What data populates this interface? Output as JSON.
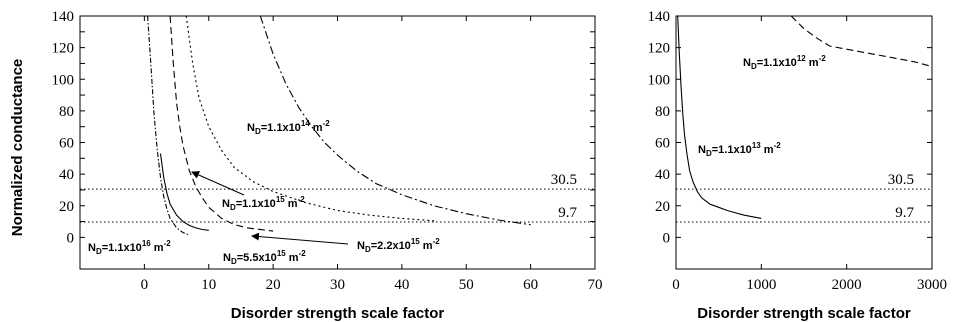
{
  "chart_data": [
    {
      "type": "line",
      "title": "",
      "xlabel": "Disorder strength scale factor",
      "ylabel": "Normalized conductance",
      "xlim": [
        -10,
        70
      ],
      "ylim": [
        -20,
        140
      ],
      "xticks": [
        "0",
        "10",
        "20",
        "30",
        "40",
        "50",
        "60",
        "70"
      ],
      "yticks": [
        "0",
        "10",
        "20",
        "30",
        "40",
        "50",
        "60",
        "70",
        "80",
        "90",
        "100",
        "110",
        "120",
        "130",
        "140"
      ],
      "ytick_labels": {
        "0": "0",
        "20": "20",
        "40": "40",
        "60": "60",
        "80": "80",
        "100": "100",
        "120": "120",
        "140": "140"
      },
      "grid": false,
      "reference_lines": [
        {
          "label": "30.5",
          "y": 30.5
        },
        {
          "label": "9.7",
          "y": 9.7
        }
      ],
      "series": [
        {
          "label_parts": {
            "pre": "N",
            "sub": "D",
            "mid": "=1.1x10",
            "sup": "16",
            "post": " m",
            "sup2": "-2"
          },
          "style": "solid",
          "points": [
            [
              2.5,
              53
            ],
            [
              3,
              38
            ],
            [
              3.5,
              28
            ],
            [
              4,
              21
            ],
            [
              5,
              14
            ],
            [
              6,
              10
            ],
            [
              7,
              7.5
            ],
            [
              8,
              6
            ],
            [
              9,
              5
            ],
            [
              10,
              4.5
            ]
          ]
        },
        {
          "label_parts": {
            "pre": "N",
            "sub": "D",
            "mid": "=5.5x10",
            "sup": "15",
            "post": " m",
            "sup2": "-2"
          },
          "style": "dashed",
          "points": [
            [
              4,
              140
            ],
            [
              4.5,
              110
            ],
            [
              5,
              85
            ],
            [
              5.5,
              70
            ],
            [
              6,
              58
            ],
            [
              7,
              42
            ],
            [
              8,
              32
            ],
            [
              9,
              25
            ],
            [
              10,
              19
            ],
            [
              12,
              12
            ],
            [
              14,
              8
            ],
            [
              16,
              6
            ],
            [
              20,
              4
            ]
          ]
        },
        {
          "label_parts": {
            "pre": "N",
            "sub": "D",
            "mid": "=2.2x10",
            "sup": "15",
            "post": " m",
            "sup2": "-2"
          },
          "style": "dash-dot-fine",
          "points": [
            [
              0.5,
              140
            ],
            [
              1,
              110
            ],
            [
              1.5,
              78
            ],
            [
              2,
              55
            ],
            [
              2.5,
              38
            ],
            [
              3,
              26
            ],
            [
              3.5,
              18
            ],
            [
              4,
              12
            ],
            [
              5,
              6
            ],
            [
              6,
              3
            ],
            [
              7,
              1.5
            ]
          ]
        },
        {
          "label_parts": {
            "pre": "N",
            "sub": "D",
            "mid": "=1.1x10",
            "sup": "15",
            "post": " m",
            "sup2": "-2"
          },
          "style": "dotted",
          "points": [
            [
              6.5,
              140
            ],
            [
              7.5,
              110
            ],
            [
              8.5,
              88
            ],
            [
              10,
              70
            ],
            [
              12,
              55
            ],
            [
              14,
              44
            ],
            [
              17,
              35
            ],
            [
              20,
              29
            ],
            [
              25,
              22
            ],
            [
              30,
              17
            ],
            [
              35,
              14
            ],
            [
              40,
              12
            ],
            [
              45,
              10.5
            ]
          ]
        },
        {
          "label_parts": {
            "pre": "N",
            "sub": "D",
            "mid": "=1.1x10",
            "sup": "14",
            "post": " m",
            "sup2": "-2"
          },
          "style": "dash-dot",
          "points": [
            [
              18,
              140
            ],
            [
              20,
              116
            ],
            [
              22,
              97
            ],
            [
              24,
              82
            ],
            [
              26,
              70
            ],
            [
              28,
              60
            ],
            [
              30,
              52
            ],
            [
              33,
              42
            ],
            [
              36,
              34
            ],
            [
              40,
              27
            ],
            [
              45,
              20
            ],
            [
              50,
              15
            ],
            [
              55,
              11
            ],
            [
              60,
              8
            ]
          ]
        }
      ]
    },
    {
      "type": "line",
      "title": "",
      "xlabel": "Disorder strength scale factor",
      "ylabel": "",
      "xlim": [
        0,
        3000
      ],
      "ylim": [
        -20,
        140
      ],
      "xticks": [
        "0",
        "1000",
        "2000",
        "3000"
      ],
      "yticks": [
        "0",
        "20",
        "40",
        "60",
        "80",
        "100",
        "120",
        "140"
      ],
      "grid": false,
      "reference_lines": [
        {
          "label": "30.5",
          "y": 30.5
        },
        {
          "label": "9.7",
          "y": 9.7
        }
      ],
      "series": [
        {
          "label_parts": {
            "pre": "N",
            "sub": "D",
            "mid": "=1.1x10",
            "sup": "13",
            "post": " m",
            "sup2": "-2"
          },
          "style": "solid",
          "points": [
            [
              20,
              140
            ],
            [
              40,
              115
            ],
            [
              60,
              95
            ],
            [
              80,
              78
            ],
            [
              100,
              65
            ],
            [
              130,
              52
            ],
            [
              160,
              42
            ],
            [
              200,
              35
            ],
            [
              250,
              29
            ],
            [
              300,
              25
            ],
            [
              400,
              21
            ],
            [
              500,
              19
            ],
            [
              600,
              17
            ],
            [
              700,
              15.5
            ],
            [
              800,
              14
            ],
            [
              900,
              13
            ],
            [
              1000,
              12
            ]
          ]
        },
        {
          "label_parts": {
            "pre": "N",
            "sub": "D",
            "mid": "=1.1x10",
            "sup": "12",
            "post": " m",
            "sup2": "-2"
          },
          "style": "dashed",
          "points": [
            [
              1350,
              140
            ],
            [
              1500,
              132
            ],
            [
              1650,
              126
            ],
            [
              1800,
              121
            ],
            [
              2000,
              119
            ],
            [
              2200,
              117
            ],
            [
              2400,
              115
            ],
            [
              2600,
              113
            ],
            [
              2800,
              111
            ],
            [
              3000,
              108
            ]
          ]
        }
      ]
    }
  ]
}
